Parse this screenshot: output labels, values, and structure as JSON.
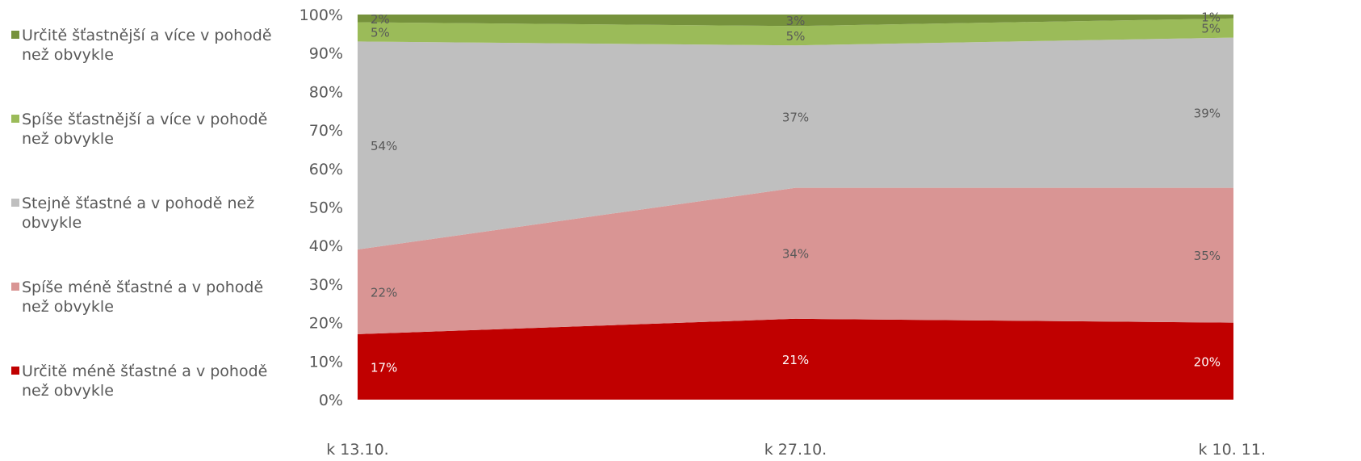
{
  "chart_data": {
    "type": "area",
    "stacked": true,
    "percent": true,
    "categories": [
      "k 13.10.",
      "k 27.10.",
      "k 10. 11."
    ],
    "y_ticks": [
      "0%",
      "10%",
      "20%",
      "30%",
      "40%",
      "50%",
      "60%",
      "70%",
      "80%",
      "90%",
      "100%"
    ],
    "ylim": [
      0,
      100
    ],
    "legend_position": "left",
    "series": [
      {
        "name": "Určitě méně šťastné a v pohodě než obvykle",
        "color": "#c00000",
        "values": [
          17,
          21,
          20
        ],
        "labels": [
          "17%",
          "21%",
          "20%"
        ],
        "label_color": "#ffffff"
      },
      {
        "name": "Spíše méně šťastné a v pohodě než obvykle",
        "color": "#d99594",
        "values": [
          22,
          34,
          35
        ],
        "labels": [
          "22%",
          "34%",
          "35%"
        ],
        "label_color": "#595959"
      },
      {
        "name": "Stejně šťastné a v pohodě než obvykle",
        "color": "#bfbfbf",
        "values": [
          54,
          37,
          39
        ],
        "labels": [
          "54%",
          "37%",
          "39%"
        ],
        "label_color": "#595959"
      },
      {
        "name": "Spíše šťastnější a více v pohodě než obvykle",
        "color": "#9bbb59",
        "values": [
          5,
          5,
          5
        ],
        "labels": [
          "5%",
          "5%",
          "5%"
        ],
        "label_color": "#595959"
      },
      {
        "name": "Určitě šťastnější a více v pohodě než obvykle",
        "color": "#76923c",
        "values": [
          2,
          3,
          1
        ],
        "labels": [
          "2%",
          "3%",
          "1%"
        ],
        "label_color": "#595959"
      }
    ]
  }
}
